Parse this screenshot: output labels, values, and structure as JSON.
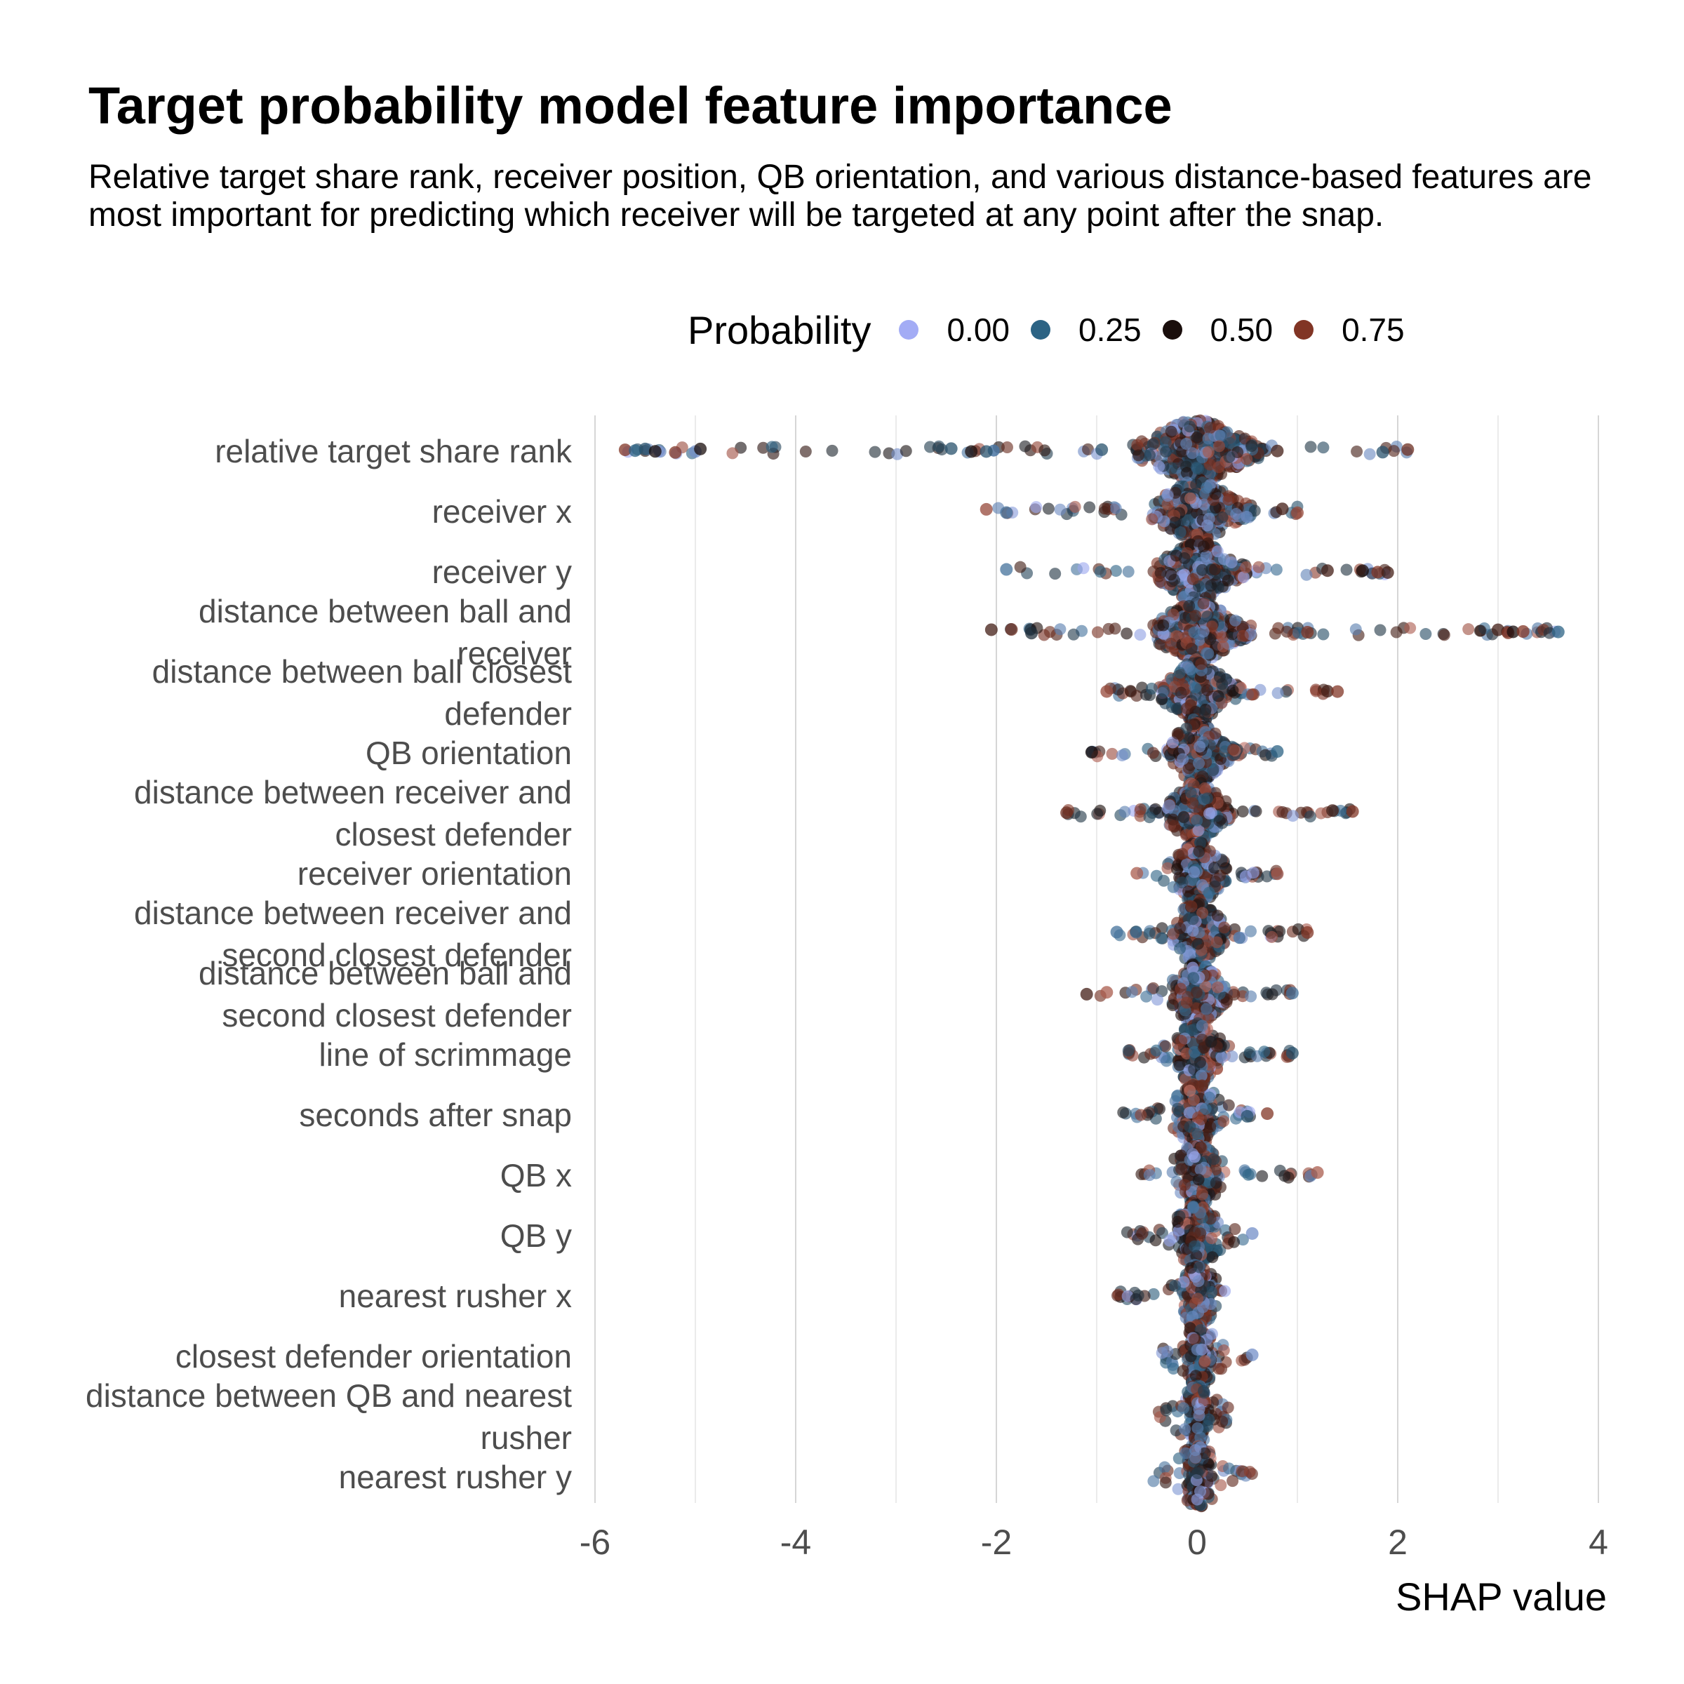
{
  "title": "Target probability model feature importance",
  "subtitle": "Relative target share rank, receiver position, QB orientation, and various distance-based features are most important for predicting which receiver will be targeted at any point after the snap.",
  "legend": {
    "title": "Probability",
    "items": [
      {
        "label": "0.00",
        "color": "#a3acf5"
      },
      {
        "label": "0.25",
        "color": "#2c6384"
      },
      {
        "label": "0.50",
        "color": "#1a0e0c"
      },
      {
        "label": "0.75",
        "color": "#813525"
      }
    ]
  },
  "chart_data": {
    "type": "scatter",
    "subtype": "beeswarm",
    "title": "Target probability model feature importance",
    "xlabel": "SHAP value",
    "ylabel": "",
    "xlim": [
      -6,
      4
    ],
    "xticks": [
      -6,
      -4,
      -2,
      0,
      2,
      4
    ],
    "grid": "vertical",
    "legend_position": "top",
    "color_scale": {
      "name": "Probability",
      "breaks": [
        0.0,
        0.25,
        0.5,
        0.75
      ],
      "labels": [
        "0.00",
        "0.25",
        "0.50",
        "0.75"
      ],
      "colors": [
        "#a3acf5",
        "#2c6384",
        "#1a0e0c",
        "#813525"
      ]
    },
    "features": [
      {
        "label": "relative target share rank",
        "range": [
          -5.7,
          2.1
        ],
        "core": [
          -0.6,
          0.7
        ],
        "outliers": [
          [
            -5.7,
            0.75
          ],
          [
            -5.6,
            0.25
          ],
          [
            -5.5,
            0.3
          ],
          [
            -5.4,
            0.5
          ],
          [
            -5.2,
            0.75
          ],
          [
            -5.0,
            0.1
          ],
          [
            -4.95,
            0.5
          ],
          [
            -2.45,
            0.3
          ],
          [
            -2.25,
            0.5
          ],
          [
            -2.1,
            0.3
          ],
          [
            -0.95,
            0.3
          ],
          [
            0.8,
            0.6
          ],
          [
            1.85,
            0.3
          ],
          [
            2.1,
            0.7
          ]
        ]
      },
      {
        "label": "receiver x",
        "range": [
          -2.1,
          1.0
        ],
        "core": [
          -0.45,
          0.55
        ],
        "outliers": [
          [
            -2.1,
            0.8
          ],
          [
            -1.9,
            0.2
          ],
          [
            0.85,
            0.6
          ],
          [
            1.0,
            0.8
          ]
        ]
      },
      {
        "label": "receiver y",
        "range": [
          -1.9,
          1.9
        ],
        "core": [
          -0.4,
          0.5
        ],
        "outliers": [
          [
            -1.9,
            0.2
          ],
          [
            1.3,
            0.6
          ],
          [
            1.65,
            0.5
          ],
          [
            1.8,
            0.75
          ],
          [
            1.9,
            0.6
          ]
        ]
      },
      {
        "label": "distance between ball and receiver",
        "range": [
          -2.05,
          3.6
        ],
        "core": [
          -0.45,
          0.55
        ],
        "outliers": [
          [
            -2.05,
            0.6
          ],
          [
            -1.85,
            0.7
          ],
          [
            -1.65,
            0.4
          ],
          [
            1.1,
            0.75
          ],
          [
            3.0,
            0.6
          ],
          [
            3.1,
            0.75
          ],
          [
            3.15,
            0.5
          ],
          [
            3.25,
            0.75
          ],
          [
            3.6,
            0.25
          ]
        ]
      },
      {
        "label": "distance between ball closest defender",
        "range": [
          -0.9,
          1.4
        ],
        "core": [
          -0.35,
          0.45
        ],
        "outliers": [
          [
            -0.9,
            0.8
          ],
          [
            1.3,
            0.6
          ],
          [
            1.4,
            0.75
          ]
        ]
      },
      {
        "label": "QB orientation",
        "range": [
          -1.05,
          0.8
        ],
        "core": [
          -0.3,
          0.4
        ],
        "outliers": [
          [
            -1.05,
            0.5
          ],
          [
            0.8,
            0.25
          ]
        ]
      },
      {
        "label": "distance between receiver and closest defender",
        "range": [
          -1.3,
          1.55
        ],
        "core": [
          -0.3,
          0.35
        ],
        "outliers": [
          [
            -1.3,
            0.7
          ],
          [
            1.35,
            0.6
          ],
          [
            1.55,
            0.75
          ]
        ]
      },
      {
        "label": "receiver orientation",
        "range": [
          -0.6,
          0.8
        ],
        "core": [
          -0.2,
          0.3
        ],
        "outliers": [
          [
            -0.6,
            0.85
          ],
          [
            0.8,
            0.85
          ]
        ]
      },
      {
        "label": "distance between receiver and second closest defender",
        "range": [
          -0.8,
          1.1
        ],
        "core": [
          -0.25,
          0.3
        ],
        "outliers": [
          [
            -0.8,
            0.2
          ],
          [
            1.1,
            0.75
          ]
        ]
      },
      {
        "label": "distance between ball and second closest defender",
        "range": [
          -1.1,
          0.95
        ],
        "core": [
          -0.25,
          0.3
        ],
        "outliers": [
          [
            -1.1,
            0.6
          ],
          [
            -0.9,
            0.85
          ],
          [
            0.95,
            0.2
          ]
        ]
      },
      {
        "label": "line of scrimmage",
        "range": [
          -0.7,
          0.95
        ],
        "core": [
          -0.2,
          0.25
        ],
        "outliers": [
          [
            0.95,
            0.3
          ]
        ]
      },
      {
        "label": "seconds after snap",
        "range": [
          -0.8,
          0.7
        ],
        "core": [
          -0.2,
          0.25
        ],
        "outliers": [
          [
            0.5,
            0.3
          ],
          [
            0.7,
            0.75
          ]
        ]
      },
      {
        "label": "QB x",
        "range": [
          -0.6,
          1.2
        ],
        "core": [
          -0.2,
          0.25
        ],
        "outliers": [
          [
            1.2,
            0.85
          ]
        ]
      },
      {
        "label": "QB y",
        "range": [
          -0.8,
          0.55
        ],
        "core": [
          -0.2,
          0.2
        ],
        "outliers": [
          [
            0.55,
            0.1
          ]
        ]
      },
      {
        "label": "nearest rusher x",
        "range": [
          -0.8,
          0.3
        ],
        "core": [
          -0.15,
          0.15
        ],
        "outliers": []
      },
      {
        "label": "closest defender orientation",
        "range": [
          -0.35,
          0.55
        ],
        "core": [
          -0.1,
          0.15
        ],
        "outliers": [
          [
            0.55,
            0.1
          ]
        ]
      },
      {
        "label": "distance between QB and nearest rusher",
        "range": [
          -0.4,
          0.35
        ],
        "core": [
          -0.1,
          0.12
        ],
        "outliers": []
      },
      {
        "label": "nearest rusher y",
        "range": [
          -0.5,
          0.55
        ],
        "core": [
          -0.1,
          0.15
        ],
        "outliers": []
      }
    ]
  }
}
